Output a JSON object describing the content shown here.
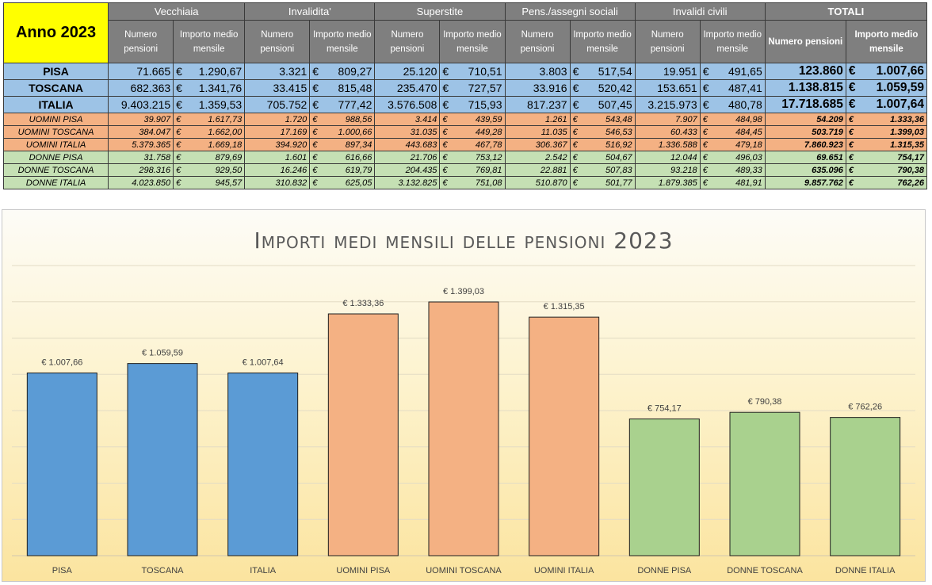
{
  "table": {
    "year_label": "Anno 2023",
    "groups": [
      "Vecchiaia",
      "Invalidita'",
      "Superstite",
      "Pens./assegni sociali",
      "Invalidi civili",
      "TOTALI"
    ],
    "sub_headers": {
      "vecchiaia": [
        "Numero pensioni",
        "Importo medio mensile"
      ],
      "invalidita": [
        "Numero pensioni",
        "Importo medio mensile"
      ],
      "superstite": [
        "Numero pensioni",
        "Importo medio mensile"
      ],
      "sociali": [
        "Numero pensioni",
        "Importo medio mensile"
      ],
      "civili": [
        "Numero pensioni",
        "Importo medio mensile"
      ],
      "totali": [
        "Numero pensioni",
        "Importo medio mensile"
      ]
    },
    "currency": "€",
    "rows": [
      {
        "label": "PISA",
        "kind": "main",
        "cells": [
          "71.665",
          "1.290,67",
          "3.321",
          "809,27",
          "25.120",
          "710,51",
          "3.803",
          "517,54",
          "19.951",
          "491,65",
          "123.860",
          "1.007,66"
        ]
      },
      {
        "label": "TOSCANA",
        "kind": "main",
        "cells": [
          "682.363",
          "1.341,76",
          "33.415",
          "815,48",
          "235.470",
          "727,57",
          "33.916",
          "520,42",
          "153.651",
          "487,41",
          "1.138.815",
          "1.059,59"
        ]
      },
      {
        "label": "ITALIA",
        "kind": "main",
        "cells": [
          "9.403.215",
          "1.359,53",
          "705.752",
          "777,42",
          "3.576.508",
          "715,93",
          "817.237",
          "507,45",
          "3.215.973",
          "480,78",
          "17.718.685",
          "1.007,64"
        ]
      },
      {
        "label": "UOMINI PISA",
        "kind": "men",
        "cells": [
          "39.907",
          "1.617,73",
          "1.720",
          "988,56",
          "3.414",
          "439,59",
          "1.261",
          "543,48",
          "7.907",
          "484,98",
          "54.209",
          "1.333,36"
        ]
      },
      {
        "label": "UOMINI TOSCANA",
        "kind": "men",
        "cells": [
          "384.047",
          "1.662,00",
          "17.169",
          "1.000,66",
          "31.035",
          "449,28",
          "11.035",
          "546,53",
          "60.433",
          "484,45",
          "503.719",
          "1.399,03"
        ]
      },
      {
        "label": "UOMINI ITALIA",
        "kind": "men",
        "cells": [
          "5.379.365",
          "1.669,18",
          "394.920",
          "897,34",
          "443.683",
          "467,78",
          "306.367",
          "516,92",
          "1.336.588",
          "479,18",
          "7.860.923",
          "1.315,35"
        ]
      },
      {
        "label": "DONNE PISA",
        "kind": "wom",
        "cells": [
          "31.758",
          "879,69",
          "1.601",
          "616,66",
          "21.706",
          "753,12",
          "2.542",
          "504,67",
          "12.044",
          "496,03",
          "69.651",
          "754,17"
        ]
      },
      {
        "label": "DONNE TOSCANA",
        "kind": "wom",
        "cells": [
          "298.316",
          "929,50",
          "16.246",
          "619,79",
          "204.435",
          "769,81",
          "22.881",
          "507,83",
          "93.218",
          "489,33",
          "635.096",
          "790,38"
        ]
      },
      {
        "label": "DONNE ITALIA",
        "kind": "wom",
        "cells": [
          "4.023.850",
          "945,57",
          "310.832",
          "625,05",
          "3.132.825",
          "751,08",
          "510.870",
          "501,77",
          "1.879.385",
          "481,91",
          "9.857.762",
          "762,26"
        ]
      }
    ]
  },
  "chart_data": {
    "type": "bar",
    "title": "Importi medi mensili delle pensioni 2023",
    "categories": [
      "PISA",
      "TOSCANA",
      "ITALIA",
      "UOMINI PISA",
      "UOMINI TOSCANA",
      "UOMINI ITALIA",
      "DONNE PISA",
      "DONNE TOSCANA",
      "DONNE ITALIA"
    ],
    "values": [
      1007.66,
      1059.59,
      1007.64,
      1333.36,
      1399.03,
      1315.35,
      754.17,
      790.38,
      762.26
    ],
    "labels": [
      "€ 1.007,66",
      "€ 1.059,59",
      "€ 1.007,64",
      "€ 1.333,36",
      "€ 1.399,03",
      "€ 1.315,35",
      "€ 754,17",
      "€ 790,38",
      "€ 762,26"
    ],
    "colors": [
      "#5b9bd5",
      "#5b9bd5",
      "#5b9bd5",
      "#f4b183",
      "#f4b183",
      "#f4b183",
      "#a9d18e",
      "#a9d18e",
      "#a9d18e"
    ],
    "ylim": [
      0,
      1600
    ],
    "grid": true,
    "xlabel": "",
    "ylabel": ""
  }
}
